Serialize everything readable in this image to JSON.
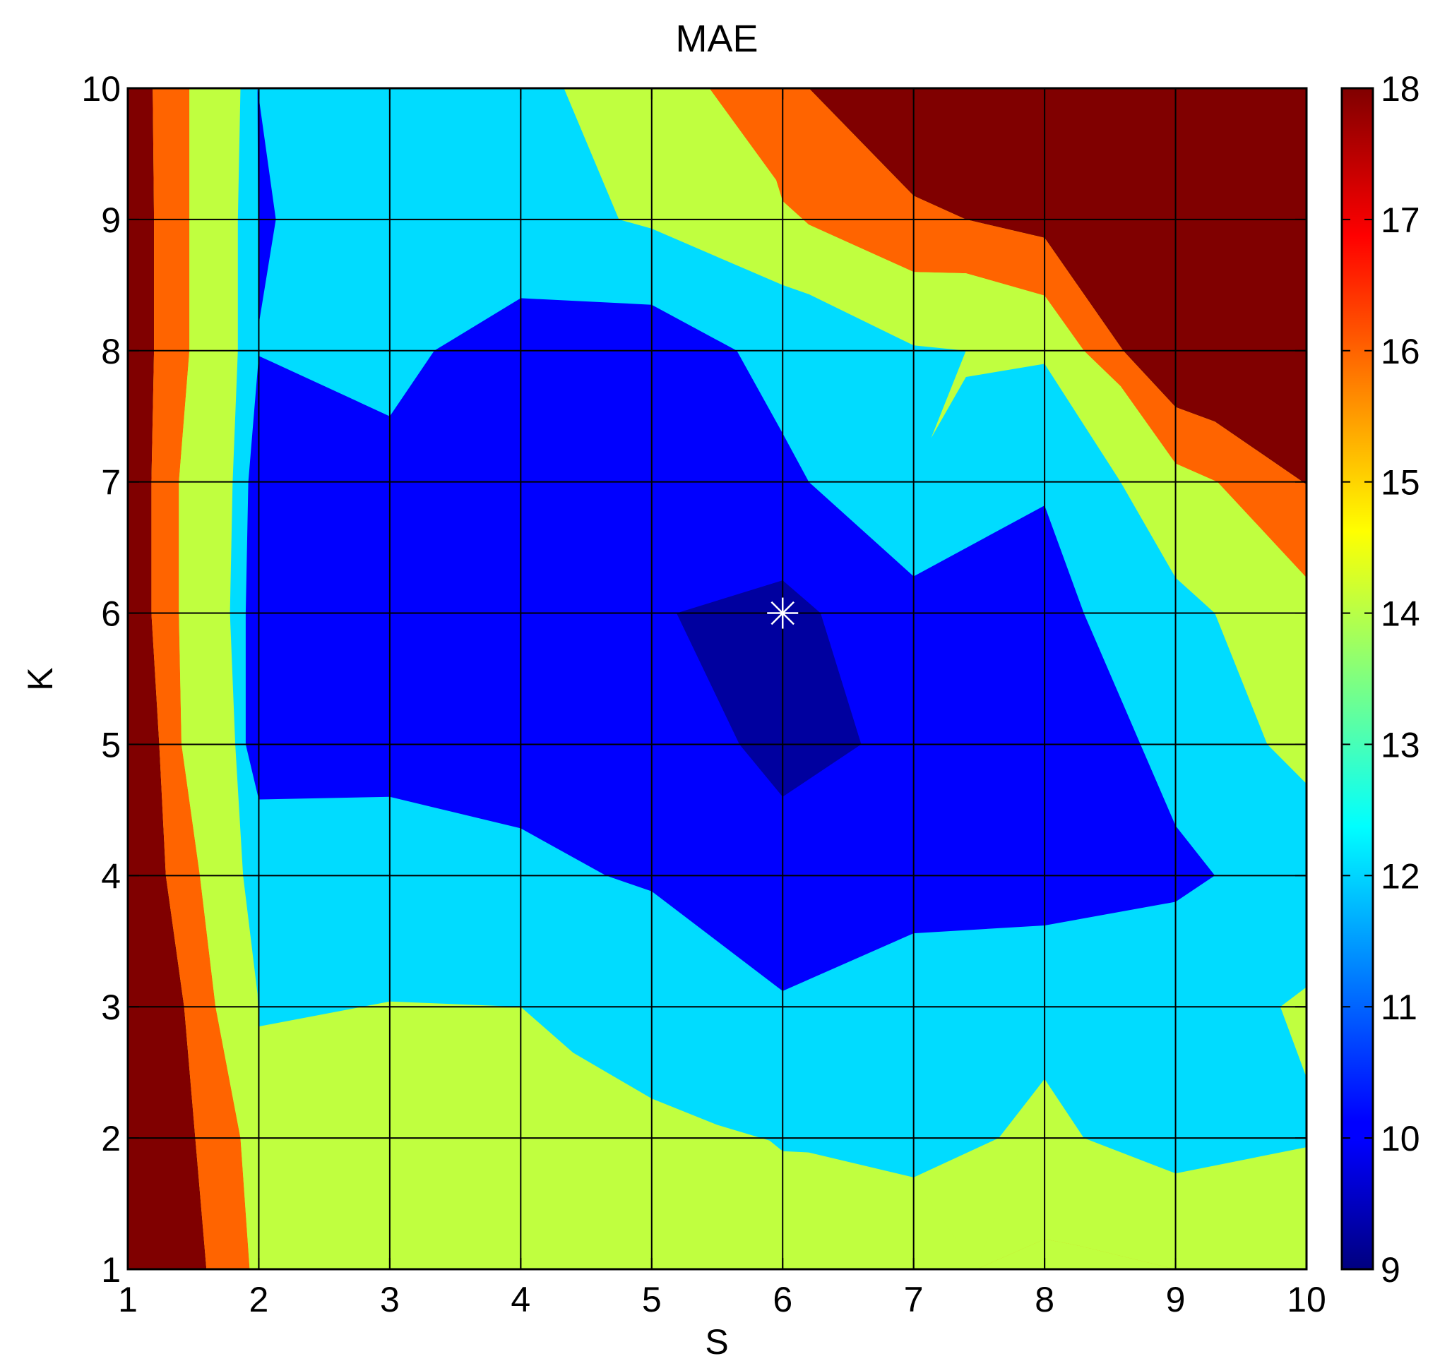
{
  "chart_data": {
    "type": "contourf",
    "title": "MAE",
    "xlabel": "S",
    "ylabel": "K",
    "xlim": [
      1,
      10
    ],
    "ylim": [
      1,
      10
    ],
    "x_ticks": [
      "1",
      "2",
      "3",
      "4",
      "5",
      "6",
      "7",
      "8",
      "9",
      "10"
    ],
    "y_ticks": [
      "1",
      "2",
      "3",
      "4",
      "5",
      "6",
      "7",
      "8",
      "9",
      "10"
    ],
    "grid": true,
    "colorbar": {
      "range": [
        9,
        18
      ],
      "ticks": [
        "9",
        "10",
        "11",
        "12",
        "13",
        "14",
        "15",
        "16",
        "17",
        "18"
      ],
      "colormap": "jet"
    },
    "level_colors": {
      "lt9.5": "#00009f",
      "9.5-10.5": "#0000ff",
      "10.5-12.5": "#00dcff",
      "12.5-15": "#c0ff3f",
      "15-17": "#ff6400",
      "gt17": "#800000"
    },
    "marker": {
      "shape": "asterisk",
      "x": 6,
      "y": 6,
      "color": "#ffffff"
    },
    "regions": [
      {
        "level": "gt17",
        "polygon": [
          [
            1,
            1
          ],
          [
            1.6,
            1
          ],
          [
            1.43,
            3
          ],
          [
            1.29,
            4
          ],
          [
            1.24,
            5
          ],
          [
            1.18,
            6
          ],
          [
            1.18,
            7
          ],
          [
            1.2,
            8
          ],
          [
            1.2,
            9
          ],
          [
            1.19,
            10
          ],
          [
            1,
            10
          ]
        ]
      },
      {
        "level": "gt17",
        "polygon": [
          [
            6.2,
            10
          ],
          [
            10,
            10
          ],
          [
            10,
            6.98
          ],
          [
            9.3,
            7.46
          ],
          [
            9,
            7.57
          ],
          [
            8.6,
            8
          ],
          [
            8,
            8.86
          ],
          [
            7.4,
            9
          ],
          [
            7,
            9.18
          ]
        ]
      },
      {
        "level": "15-17",
        "polygon": [
          [
            1.6,
            1
          ],
          [
            1.93,
            1
          ],
          [
            1.86,
            2
          ],
          [
            1.67,
            3
          ],
          [
            1.55,
            4
          ],
          [
            1.41,
            5
          ],
          [
            1.39,
            6
          ],
          [
            1.39,
            7
          ],
          [
            1.47,
            8
          ],
          [
            1.47,
            9
          ],
          [
            1.47,
            10
          ],
          [
            1.19,
            10
          ],
          [
            1.2,
            9
          ],
          [
            1.2,
            8
          ],
          [
            1.18,
            7
          ],
          [
            1.18,
            6
          ],
          [
            1.24,
            5
          ],
          [
            1.29,
            4
          ],
          [
            1.43,
            3
          ]
        ]
      },
      {
        "level": "15-17",
        "polygon": [
          [
            5.44,
            10
          ],
          [
            6.2,
            10
          ],
          [
            7,
            9.18
          ],
          [
            7.4,
            9
          ],
          [
            8,
            8.86
          ],
          [
            8.6,
            8
          ],
          [
            9,
            7.57
          ],
          [
            9.3,
            7.46
          ],
          [
            10,
            6.98
          ],
          [
            10,
            6.27
          ],
          [
            9.32,
            7
          ],
          [
            9,
            7.14
          ],
          [
            8.58,
            7.73
          ],
          [
            8.3,
            8
          ],
          [
            8,
            8.42
          ],
          [
            7.4,
            8.59
          ],
          [
            7,
            8.6
          ],
          [
            6.2,
            8.96
          ],
          [
            6,
            9.14
          ],
          [
            5.95,
            9.3
          ]
        ]
      },
      {
        "level": "15-17",
        "polygon": [
          [
            7.48,
            1
          ],
          [
            8,
            1.23
          ],
          [
            8.26,
            1.18
          ],
          [
            9,
            1
          ],
          [
            10,
            1.12
          ],
          [
            10,
            1
          ]
        ]
      },
      {
        "level": "12.5-15",
        "polygon": [
          [
            1.93,
            1
          ],
          [
            7.48,
            1
          ],
          [
            10,
            1
          ],
          [
            10,
            1.12
          ],
          [
            9,
            1
          ],
          [
            8.26,
            1.18
          ],
          [
            8,
            1.23
          ],
          [
            7.48,
            1
          ],
          [
            7,
            1.7
          ],
          [
            6.2,
            1.89
          ],
          [
            6,
            1.9
          ],
          [
            5.9,
            1.98
          ],
          [
            5.5,
            2.1
          ],
          [
            5,
            2.3
          ],
          [
            4.4,
            2.65
          ],
          [
            4,
            3
          ],
          [
            3,
            3.04
          ],
          [
            2,
            2.85
          ],
          [
            1.99,
            3.1
          ],
          [
            1.88,
            4
          ],
          [
            1.82,
            5
          ],
          [
            1.78,
            6
          ],
          [
            1.8,
            7
          ],
          [
            1.84,
            8
          ],
          [
            1.84,
            9
          ],
          [
            1.86,
            10
          ],
          [
            1.47,
            10
          ],
          [
            1.47,
            9
          ],
          [
            1.47,
            8
          ],
          [
            1.39,
            7
          ],
          [
            1.39,
            6
          ],
          [
            1.41,
            5
          ],
          [
            1.55,
            4
          ],
          [
            1.67,
            3
          ],
          [
            1.86,
            2
          ]
        ]
      },
      {
        "level": "12.5-15",
        "polygon": [
          [
            4.33,
            10
          ],
          [
            5.44,
            10
          ],
          [
            5.95,
            9.3
          ],
          [
            6,
            9.14
          ],
          [
            6.2,
            8.96
          ],
          [
            7,
            8.6
          ],
          [
            7.4,
            8.59
          ],
          [
            8,
            8.42
          ],
          [
            8.3,
            8
          ],
          [
            8.58,
            7.73
          ],
          [
            9,
            7.14
          ],
          [
            9.32,
            7
          ],
          [
            10,
            6.27
          ],
          [
            10,
            4.7
          ],
          [
            9.7,
            5
          ],
          [
            9.3,
            6
          ],
          [
            9,
            6.27
          ],
          [
            8.58,
            7
          ],
          [
            8,
            7.9
          ],
          [
            7.4,
            8
          ],
          [
            7,
            7
          ],
          [
            7,
            8.04
          ],
          [
            6.2,
            8.43
          ],
          [
            6,
            8.5
          ],
          [
            5,
            8.93
          ],
          [
            4.75,
            9
          ]
        ]
      },
      {
        "level": "12.5-15",
        "polygon": [
          [
            8,
            2.45
          ],
          [
            8.3,
            2
          ],
          [
            9,
            1.73
          ],
          [
            10,
            1.93
          ],
          [
            10,
            1.1
          ],
          [
            9,
            1
          ],
          [
            8.26,
            1.18
          ],
          [
            8,
            1.23
          ],
          [
            7.48,
            1
          ]
        ]
      },
      {
        "level": "12.5-15",
        "polygon": [
          [
            9.8,
            3
          ],
          [
            10,
            3.15
          ],
          [
            10,
            2.46
          ]
        ]
      },
      {
        "level": "10.5-12.5",
        "polygon": [
          [
            1.86,
            10
          ],
          [
            4.33,
            10
          ],
          [
            4.75,
            9
          ],
          [
            5,
            8.93
          ],
          [
            6,
            8.5
          ],
          [
            6.2,
            8.43
          ],
          [
            7,
            8.04
          ],
          [
            7.4,
            8
          ],
          [
            7,
            7
          ],
          [
            7,
            7.1
          ],
          [
            7.4,
            7.8
          ],
          [
            8,
            7.9
          ],
          [
            8.58,
            7
          ],
          [
            9,
            6.27
          ],
          [
            9.3,
            6
          ],
          [
            9.7,
            5
          ],
          [
            10,
            4.7
          ],
          [
            10,
            3.15
          ],
          [
            9.8,
            3
          ],
          [
            10,
            2.46
          ],
          [
            10,
            1.93
          ],
          [
            9,
            1.73
          ],
          [
            8.3,
            2
          ],
          [
            8,
            2.45
          ],
          [
            7.65,
            2
          ],
          [
            7,
            1.7
          ],
          [
            6.2,
            1.89
          ],
          [
            6,
            1.9
          ],
          [
            5.9,
            1.98
          ],
          [
            5.5,
            2.1
          ],
          [
            5,
            2.3
          ],
          [
            4.4,
            2.65
          ],
          [
            4,
            3
          ],
          [
            3,
            3.04
          ],
          [
            2,
            2.85
          ],
          [
            1.99,
            3.1
          ],
          [
            1.88,
            4
          ],
          [
            1.82,
            5
          ],
          [
            1.78,
            6
          ],
          [
            1.8,
            7
          ],
          [
            1.84,
            8
          ],
          [
            1.84,
            9
          ]
        ]
      },
      {
        "level": "9.5-10.5",
        "polygon": [
          [
            2,
            4.58
          ],
          [
            3,
            4.6
          ],
          [
            4,
            4.36
          ],
          [
            4.65,
            4
          ],
          [
            5,
            3.88
          ],
          [
            6,
            3.12
          ],
          [
            7,
            3.56
          ],
          [
            8,
            3.62
          ],
          [
            9,
            3.8
          ],
          [
            9.3,
            4
          ],
          [
            9,
            4.38
          ],
          [
            8.3,
            6
          ],
          [
            8,
            6.82
          ],
          [
            7,
            6.28
          ],
          [
            6.2,
            7
          ],
          [
            6,
            7.37
          ],
          [
            5.65,
            8
          ],
          [
            5,
            8.35
          ],
          [
            4,
            8.4
          ],
          [
            3.34,
            8
          ],
          [
            3,
            7.5
          ],
          [
            2,
            7.96
          ],
          [
            1.99,
            10
          ],
          [
            2.13,
            9
          ],
          [
            2,
            8.2
          ],
          [
            2,
            7.96
          ],
          [
            1.92,
            7
          ],
          [
            1.9,
            6
          ],
          [
            1.9,
            5
          ]
        ]
      },
      {
        "level": "lt9.5",
        "polygon": [
          [
            5.19,
            6
          ],
          [
            6,
            6.25
          ],
          [
            6.29,
            6
          ],
          [
            6.6,
            5
          ],
          [
            6,
            4.6
          ],
          [
            5.67,
            5
          ]
        ]
      }
    ]
  }
}
